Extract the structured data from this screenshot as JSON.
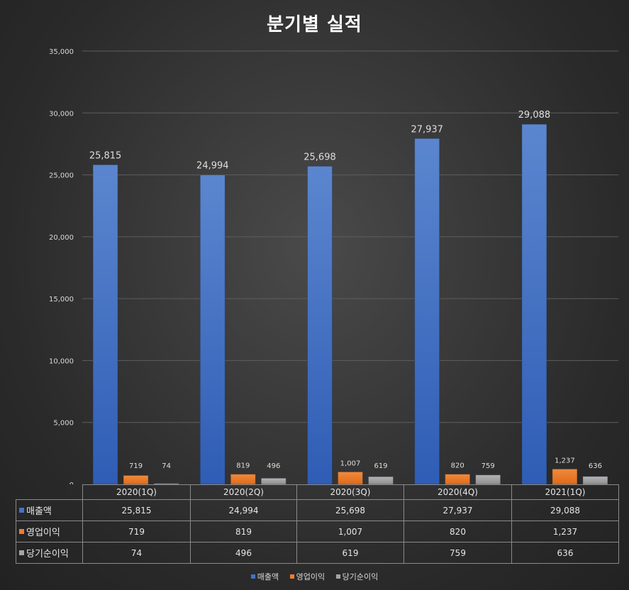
{
  "chart_data": {
    "type": "bar",
    "title": "분기별 실적",
    "categories": [
      "2020(1Q)",
      "2020(2Q)",
      "2020(3Q)",
      "2020(4Q)",
      "2021(1Q)"
    ],
    "series": [
      {
        "name": "매출액",
        "color": "#4472c4",
        "values": [
          25815,
          24994,
          25698,
          27937,
          29088
        ]
      },
      {
        "name": "영업이익",
        "color": "#ed7d31",
        "values": [
          719,
          819,
          1007,
          820,
          1237
        ]
      },
      {
        "name": "당기순이익",
        "color": "#a5a5a5",
        "values": [
          74,
          496,
          619,
          759,
          636
        ]
      }
    ],
    "ylim": [
      0,
      35000
    ],
    "yticks": [
      0,
      5000,
      10000,
      15000,
      20000,
      25000,
      30000,
      35000
    ],
    "ytick_labels": [
      "0",
      "5,000",
      "10,000",
      "15,000",
      "20,000",
      "25,000",
      "30,000",
      "35,000"
    ],
    "value_labels": [
      [
        "25,815",
        "24,994",
        "25,698",
        "27,937",
        "29,088"
      ],
      [
        "719",
        "819",
        "1,007",
        "820",
        "1,237"
      ],
      [
        "74",
        "496",
        "619",
        "759",
        "636"
      ]
    ],
    "grid": true,
    "legend_position": "bottom",
    "data_table": true
  }
}
